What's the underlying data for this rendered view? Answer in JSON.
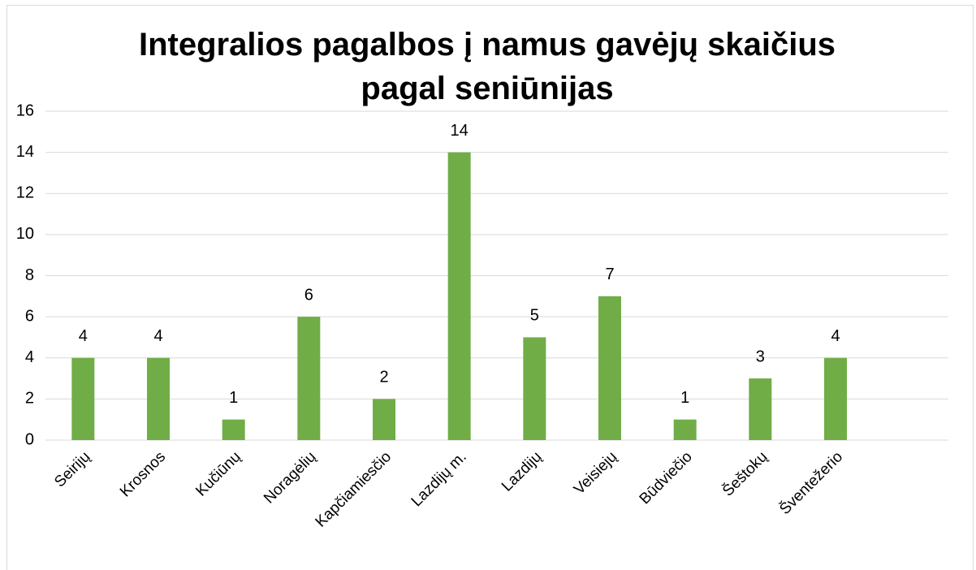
{
  "chart_data": {
    "type": "bar",
    "title": "Integralios pagalbos į namus gavėjų skaičius pagal seniūnijas",
    "categories": [
      "Seirijų",
      "Krosnos",
      "Kučiūnų",
      "Noragėlių",
      "Kapčiamiesčio",
      "Lazdijų m.",
      "Lazdijų",
      "Veisiejų",
      "Būdviečio",
      "Šeštokų",
      "Šventežerio",
      null
    ],
    "values": [
      4,
      4,
      1,
      6,
      2,
      14,
      5,
      7,
      1,
      3,
      4,
      null
    ],
    "color": "#70ad47",
    "ylim": [
      0,
      16
    ],
    "yticks": [
      0,
      2,
      4,
      6,
      8,
      10,
      12,
      14,
      16
    ],
    "grid": true
  }
}
